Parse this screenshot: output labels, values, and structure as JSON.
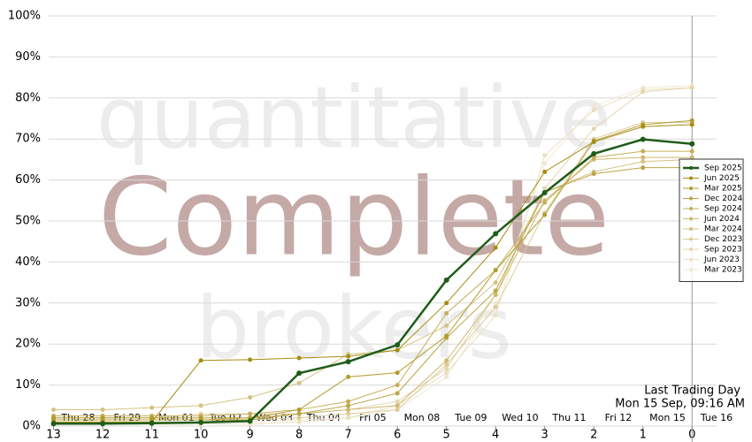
{
  "chart_data": {
    "type": "line",
    "x": [
      13,
      12,
      11,
      10,
      9,
      8,
      7,
      6,
      5,
      4,
      3,
      2,
      1,
      0
    ],
    "xlim": [
      13.1,
      -0.5
    ],
    "xticks": [
      13,
      12,
      11,
      10,
      9,
      8,
      7,
      6,
      5,
      4,
      3,
      2,
      1,
      0
    ],
    "day_ticks": [
      {
        "value": 12.5,
        "label": "Thu 28"
      },
      {
        "value": 11.5,
        "label": "Fri 29"
      },
      {
        "value": 10.5,
        "label": "Mon 01"
      },
      {
        "value": 9.5,
        "label": "Tue 02"
      },
      {
        "value": 8.5,
        "label": "Wed 03"
      },
      {
        "value": 7.5,
        "label": "Thu 04"
      },
      {
        "value": 6.5,
        "label": "Fri 05"
      },
      {
        "value": 5.5,
        "label": "Mon 08"
      },
      {
        "value": 4.5,
        "label": "Tue 09"
      },
      {
        "value": 3.5,
        "label": "Wed 10"
      },
      {
        "value": 2.5,
        "label": "Thu 11"
      },
      {
        "value": 1.5,
        "label": "Fri 12"
      },
      {
        "value": 0.5,
        "label": "Mon 15"
      },
      {
        "value": -0.5,
        "label": "Tue 16"
      }
    ],
    "ylim": [
      0,
      100
    ],
    "yticks": [
      {
        "value": 0,
        "label": "0%"
      },
      {
        "value": 10,
        "label": "10%"
      },
      {
        "value": 20,
        "label": "20%"
      },
      {
        "value": 30,
        "label": "30%"
      },
      {
        "value": 40,
        "label": "40%"
      },
      {
        "value": 50,
        "label": "50%"
      },
      {
        "value": 60,
        "label": "60%"
      },
      {
        "value": 70,
        "label": "70%"
      },
      {
        "value": 80,
        "label": "80%"
      },
      {
        "value": 90,
        "label": "90%"
      },
      {
        "value": 100,
        "label": "100%"
      }
    ],
    "grid": true,
    "legend": "right",
    "marker_x": 0,
    "annotation": [
      "Last Trading Day",
      "Mon 15 Sep, 09:16 AM"
    ],
    "watermark": [
      "quantitative",
      "Complete",
      "brokers"
    ],
    "series": [
      {
        "name": "Sep 2025",
        "color": "#1f5c1a",
        "values": [
          0.6,
          0.6,
          0.7,
          0.9,
          1.2,
          12.9,
          15.7,
          19.8,
          35.6,
          46.9,
          56.9,
          66.4,
          69.9,
          68.8
        ]
      },
      {
        "name": "Jun 2025",
        "color": "#a68d12",
        "values": [
          1,
          1,
          1,
          16,
          16.2,
          16.6,
          17,
          18.5,
          30,
          43.5,
          62,
          69.3,
          73,
          73.5
        ]
      },
      {
        "name": "Mar 2025",
        "color": "#b39b2c",
        "values": [
          2,
          2,
          2,
          2,
          2,
          4,
          12,
          13,
          22,
          38,
          51.5,
          69.5,
          73.5,
          74.5
        ]
      },
      {
        "name": "Dec 2024",
        "color": "#bca546",
        "values": [
          1.5,
          1.5,
          1.5,
          1.5,
          1.5,
          3,
          5,
          8,
          21.5,
          33,
          57,
          61.5,
          63,
          63
        ]
      },
      {
        "name": "Sep 2024",
        "color": "#c5af5b",
        "values": [
          2.5,
          2.5,
          2.5,
          2.5,
          3,
          4,
          6,
          10,
          27.5,
          38,
          54.5,
          65.5,
          67,
          67
        ]
      },
      {
        "name": "Jun 2024",
        "color": "#ceb96f",
        "values": [
          1.5,
          1.5,
          1.5,
          1.5,
          2,
          3,
          4,
          5,
          16,
          32,
          55,
          65,
          65.5,
          65.5
        ]
      },
      {
        "name": "Mar 2024",
        "color": "#d5c384",
        "values": [
          4,
          4,
          4.5,
          5,
          7,
          10.5,
          17.5,
          18.5,
          24.5,
          35,
          57,
          62,
          64.5,
          65
        ]
      },
      {
        "name": "Dec 2023",
        "color": "#ddcc99",
        "values": [
          1,
          1,
          1,
          1,
          1.5,
          2,
          3,
          4,
          15,
          29,
          52,
          70,
          74,
          74
        ]
      },
      {
        "name": "Sep 2023",
        "color": "#e4d6ad",
        "values": [
          2,
          2,
          2,
          3,
          3,
          3,
          4,
          6,
          14,
          32,
          58,
          72.5,
          81.5,
          82.5
        ]
      },
      {
        "name": "Jun 2023",
        "color": "#ebe0c2",
        "values": [
          0.5,
          0.5,
          0.5,
          0.5,
          0.5,
          1,
          2,
          5,
          13,
          27,
          66,
          77,
          82,
          82.5
        ]
      },
      {
        "name": "Mar 2023",
        "color": "#f0e8d4",
        "values": [
          1,
          1,
          1,
          1,
          1,
          1.5,
          2,
          4,
          12,
          30,
          64,
          78,
          82.5,
          83
        ]
      }
    ]
  }
}
